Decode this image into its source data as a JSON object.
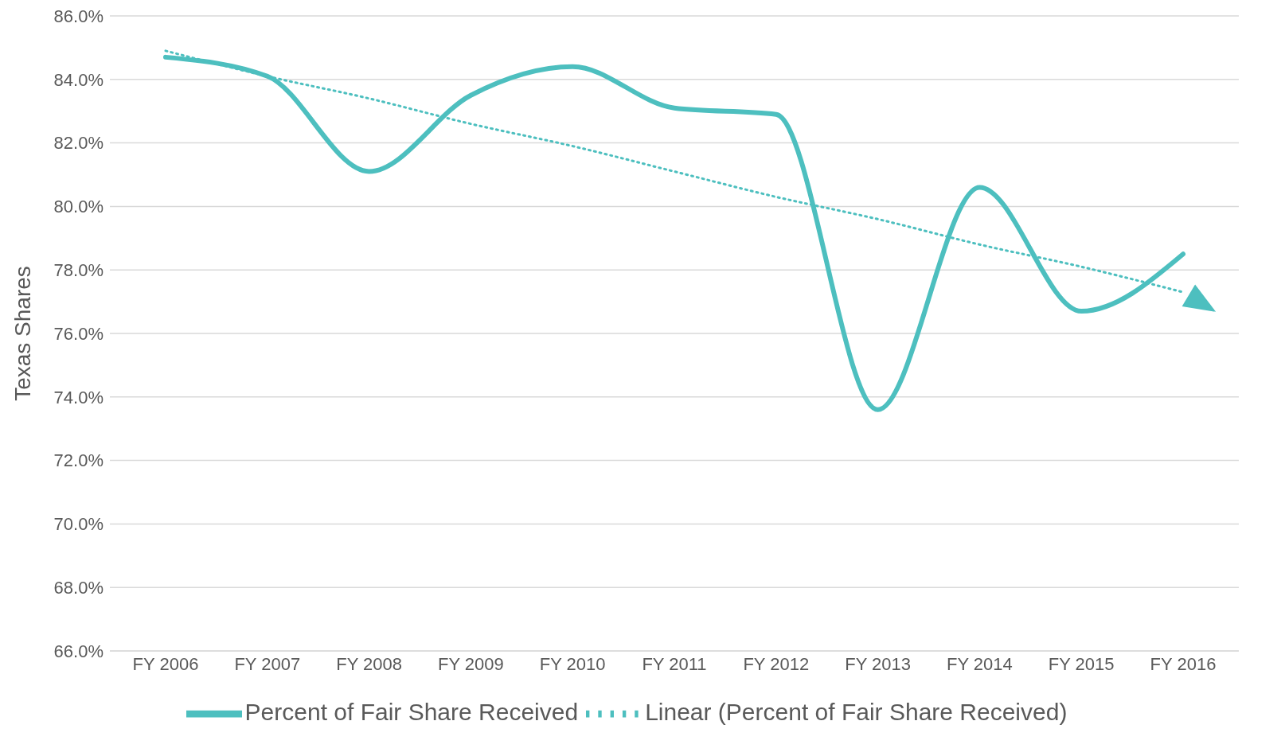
{
  "chart_data": {
    "type": "line",
    "ylabel": "Texas Shares",
    "categories": [
      "FY 2006",
      "FY 2007",
      "FY 2008",
      "FY 2009",
      "FY 2010",
      "FY 2011",
      "FY 2012",
      "FY 2013",
      "FY 2014",
      "FY 2015",
      "FY 2016"
    ],
    "series": [
      {
        "name": "Percent of Fair Share Received",
        "color": "#4dbfbf",
        "line_style": "solid",
        "values": [
          84.7,
          84.1,
          81.1,
          83.5,
          84.4,
          83.1,
          82.9,
          73.6,
          80.6,
          76.7,
          78.5
        ]
      },
      {
        "name": "Linear (Percent of Fair Share Received)",
        "color": "#4dbfbf",
        "line_style": "dotted",
        "values": [
          84.9,
          84.1,
          83.4,
          82.6,
          81.9,
          81.1,
          80.3,
          79.6,
          78.8,
          78.1,
          77.3
        ]
      }
    ],
    "ylim": [
      66,
      86
    ],
    "yticks": [
      {
        "value": 66,
        "label": "66.0%"
      },
      {
        "value": 68,
        "label": "68.0%"
      },
      {
        "value": 70,
        "label": "70.0%"
      },
      {
        "value": 72,
        "label": "72.0%"
      },
      {
        "value": 74,
        "label": "74.0%"
      },
      {
        "value": 76,
        "label": "76.0%"
      },
      {
        "value": 78,
        "label": "78.0%"
      },
      {
        "value": 80,
        "label": "80.0%"
      },
      {
        "value": 82,
        "label": "82.0%"
      },
      {
        "value": 84,
        "label": "84.0%"
      },
      {
        "value": 86,
        "label": "86.0%"
      }
    ],
    "grid": "y",
    "legend": "bottom",
    "marker": "none"
  }
}
